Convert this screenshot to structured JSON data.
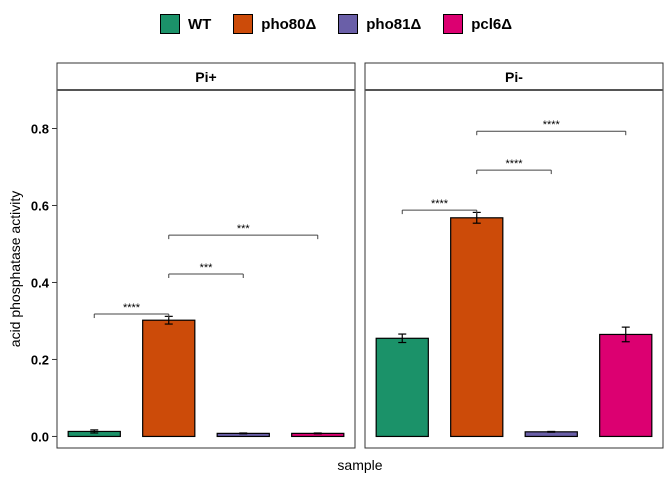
{
  "chart_data": {
    "type": "bar",
    "xlabel": "sample",
    "ylabel": "acid phosphatase activity",
    "ylim": [
      -0.03,
      0.9
    ],
    "yticks": [
      "0.0",
      "0.2",
      "0.4",
      "0.6",
      "0.8"
    ],
    "ytick_values": [
      0.0,
      0.2,
      0.4,
      0.6,
      0.8
    ],
    "legend_position": "top",
    "colors": {
      "WT": "#1b9269",
      "pho80Δ": "#cc4b09",
      "pho81Δ": "#6a5fa8",
      "pcl6Δ": "#dc0071"
    },
    "categories": [
      "WT",
      "pho80Δ",
      "pho81Δ",
      "pcl6Δ"
    ],
    "legend": [
      "WT",
      "pho80Δ",
      "pho81Δ",
      "pcl6Δ"
    ],
    "panels": [
      {
        "label": "Pi+",
        "values": [
          0.013,
          0.302,
          0.008,
          0.008
        ],
        "errors": [
          0.004,
          0.01,
          0.001,
          0.001
        ],
        "significance": [
          {
            "from": 0,
            "to": 1,
            "y": 0.318,
            "label": "****"
          },
          {
            "from": 1,
            "to": 2,
            "y": 0.422,
            "label": "***"
          },
          {
            "from": 1,
            "to": 3,
            "y": 0.523,
            "label": "***"
          }
        ]
      },
      {
        "label": "Pi-",
        "values": [
          0.255,
          0.568,
          0.012,
          0.265
        ],
        "errors": [
          0.011,
          0.014,
          0.001,
          0.019
        ],
        "significance": [
          {
            "from": 0,
            "to": 1,
            "y": 0.588,
            "label": "****"
          },
          {
            "from": 1,
            "to": 2,
            "y": 0.692,
            "label": "****"
          },
          {
            "from": 1,
            "to": 3,
            "y": 0.793,
            "label": "****"
          }
        ]
      }
    ]
  }
}
